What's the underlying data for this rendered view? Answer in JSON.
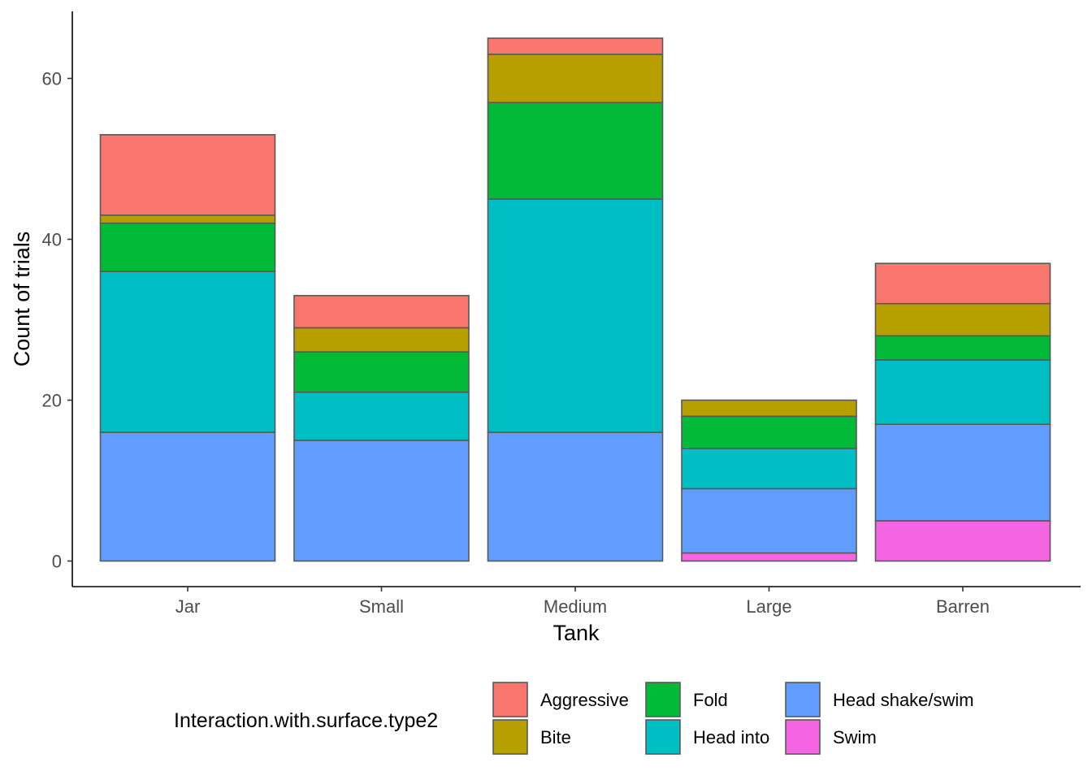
{
  "chart_data": {
    "type": "bar",
    "stacked": true,
    "xlabel": "Tank",
    "ylabel": "Count of trials",
    "ylim": [
      0,
      65
    ],
    "yticks": [
      0,
      20,
      40,
      60
    ],
    "grid": false,
    "legend_position": "bottom",
    "categories": [
      "Jar",
      "Small",
      "Medium",
      "Large",
      "Barren"
    ],
    "legend_title": "Interaction.with.surface.type2",
    "series": [
      {
        "name": "Swim",
        "color": "#F564E3",
        "values": [
          0,
          0,
          0,
          1,
          5
        ]
      },
      {
        "name": "Head shake/swim",
        "color": "#619CFF",
        "values": [
          16,
          15,
          16,
          8,
          12
        ]
      },
      {
        "name": "Head into",
        "color": "#00BFC4",
        "values": [
          20,
          6,
          29,
          5,
          8
        ]
      },
      {
        "name": "Fold",
        "color": "#00BA38",
        "values": [
          6,
          5,
          12,
          4,
          3
        ]
      },
      {
        "name": "Bite",
        "color": "#B79F00",
        "values": [
          1,
          3,
          6,
          2,
          4
        ]
      },
      {
        "name": "Aggressive",
        "color": "#F8766D",
        "values": [
          10,
          4,
          2,
          0,
          5
        ]
      }
    ],
    "legend_order": [
      "Aggressive",
      "Bite",
      "Fold",
      "Head into",
      "Head shake/swim",
      "Swim"
    ]
  }
}
